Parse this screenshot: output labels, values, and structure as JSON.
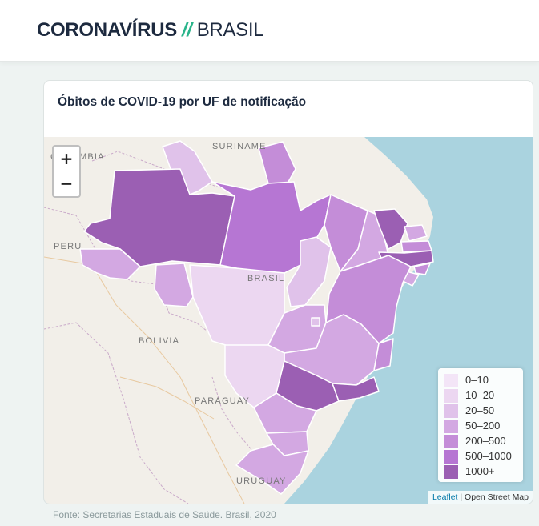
{
  "header": {
    "title_main": "CORONAVÍRUS",
    "title_sep": "//",
    "title_sub": "BRASIL"
  },
  "card": {
    "title": "Óbitos de COVID-19 por UF de notificação"
  },
  "map": {
    "zoom_in": "+",
    "zoom_out": "−",
    "places": {
      "colombia": "COLOMBIA",
      "suriname": "SURINAME",
      "peru": "PERU",
      "brasil": "BRASIL",
      "bolivia": "BOLIVIA",
      "paraguay": "PARAGUAY",
      "uruguay": "URUGUAY"
    },
    "attribution_leaflet": "Leaflet",
    "attribution_sep": " | ",
    "attribution_osm": "Open Street Map",
    "colors": {
      "ocean": "#aad3df",
      "land": "#f2efe9",
      "state_border": "#ffffff"
    },
    "legend": [
      {
        "label": "0–10",
        "color": "#f3e5f7"
      },
      {
        "label": "10–20",
        "color": "#ecd7f1"
      },
      {
        "label": "20–50",
        "color": "#e0c2ea"
      },
      {
        "label": "50–200",
        "color": "#d3a8e2"
      },
      {
        "label": "200–500",
        "color": "#c48dd8"
      },
      {
        "label": "500–1000",
        "color": "#b676d3"
      },
      {
        "label": "1000+",
        "color": "#9b5fb3"
      }
    ],
    "states": [
      {
        "uf": "AM",
        "class": "1000+"
      },
      {
        "uf": "PA",
        "class": "500–1000"
      },
      {
        "uf": "CE",
        "class": "1000+"
      },
      {
        "uf": "PE",
        "class": "1000+"
      },
      {
        "uf": "SP",
        "class": "1000+"
      },
      {
        "uf": "RJ",
        "class": "1000+"
      },
      {
        "uf": "MA",
        "class": "200–500"
      },
      {
        "uf": "BA",
        "class": "200–500"
      },
      {
        "uf": "AP",
        "class": "200–500"
      },
      {
        "uf": "AC",
        "class": "50–200"
      },
      {
        "uf": "ES",
        "class": "200–500"
      },
      {
        "uf": "PB",
        "class": "200–500"
      },
      {
        "uf": "RN",
        "class": "50–200"
      },
      {
        "uf": "AL",
        "class": "200–500"
      },
      {
        "uf": "SE",
        "class": "50–200"
      },
      {
        "uf": "PI",
        "class": "50–200"
      },
      {
        "uf": "RO",
        "class": "50–200"
      },
      {
        "uf": "MG",
        "class": "50–200"
      },
      {
        "uf": "GO",
        "class": "50–200"
      },
      {
        "uf": "PR",
        "class": "50–200"
      },
      {
        "uf": "SC",
        "class": "50–200"
      },
      {
        "uf": "RS",
        "class": "50–200"
      },
      {
        "uf": "RR",
        "class": "20–50"
      },
      {
        "uf": "TO",
        "class": "20–50"
      },
      {
        "uf": "DF",
        "class": "20–50"
      },
      {
        "uf": "MT",
        "class": "10–20"
      },
      {
        "uf": "MS",
        "class": "10–20"
      }
    ]
  },
  "source": "Fonte: Secretarias Estaduais de Saúde. Brasil, 2020"
}
